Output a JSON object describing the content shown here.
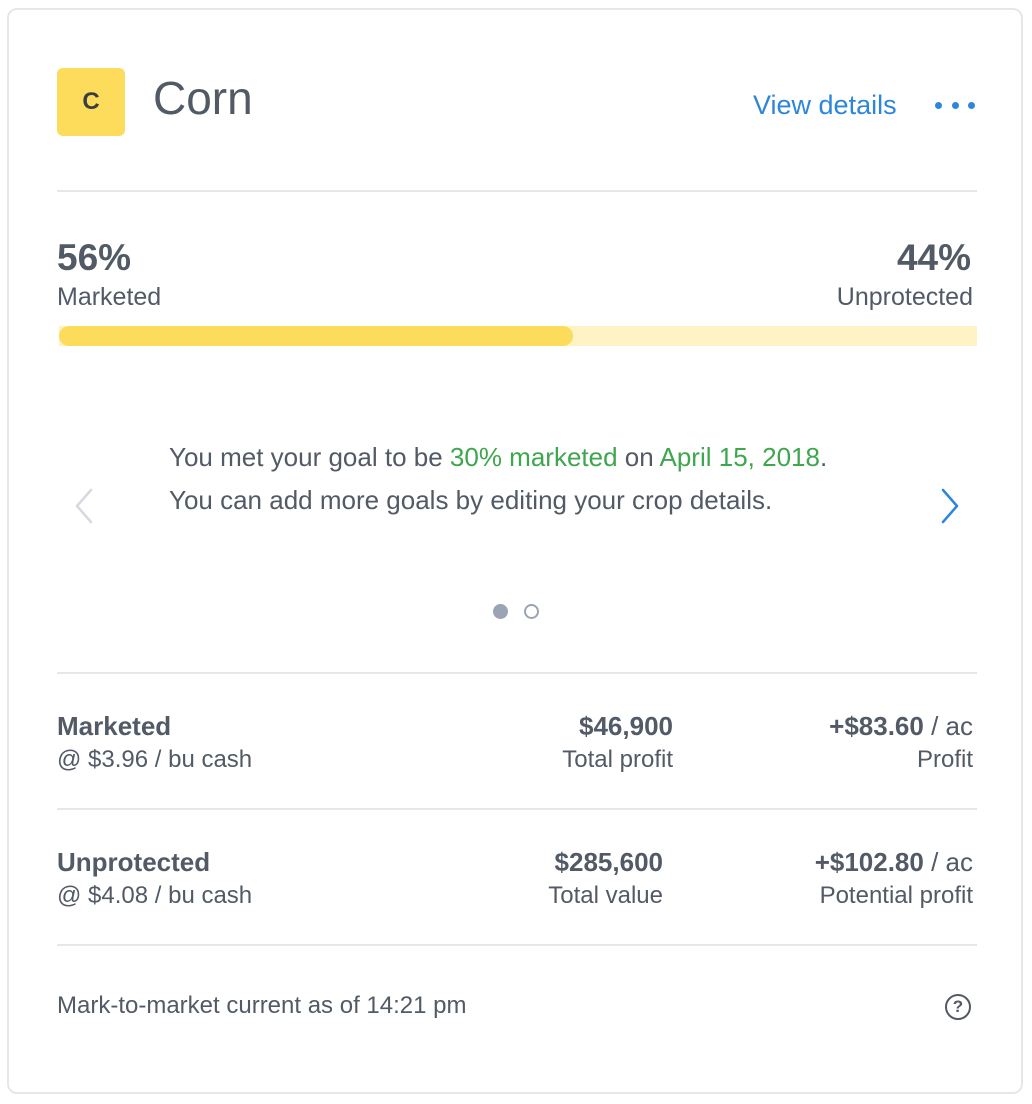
{
  "crop": {
    "badge_letter": "C",
    "name": "Corn",
    "view_details_label": "View details",
    "more_icon": "ellipsis-icon"
  },
  "progress": {
    "marketed_pct_text": "56%",
    "marketed_label": "Marketed",
    "unprotected_pct_text": "44%",
    "unprotected_label": "Unprotected",
    "marketed_fraction": 0.56,
    "colors": {
      "filled": "#fddc5c",
      "track": "#fff3c6"
    }
  },
  "carousel": {
    "message_part1": "You met your goal to be ",
    "message_goal": "30% marketed",
    "message_part2": " on ",
    "message_date": "April 15, 2018",
    "message_part3": ". You can add more goals by editing your crop details.",
    "prev_icon": "chevron-left-icon",
    "next_icon": "chevron-right-icon",
    "active_slide": 1,
    "slide_count": 2
  },
  "rows": [
    {
      "title": "Marketed",
      "price": "@ $3.96 / bu cash",
      "amount": "$46,900",
      "amount_label": "Total profit",
      "per_acre": "+$83.60",
      "per_acre_unit": " / ac",
      "per_acre_label": "Profit"
    },
    {
      "title": "Unprotected",
      "price": "@ $4.08 / bu cash",
      "amount": "$285,600",
      "amount_label": "Total value",
      "per_acre": "+$102.80",
      "per_acre_unit": " / ac",
      "per_acre_label": "Potential profit"
    }
  ],
  "footer": {
    "text": "Mark-to-market current as of 14:21 pm",
    "help_icon": "question-circle-icon",
    "help_glyph": "?"
  },
  "colors": {
    "accent_blue": "#2d86d9",
    "success_green": "#3ea64e",
    "text": "#525a66",
    "badge_yellow": "#fddc5c"
  }
}
